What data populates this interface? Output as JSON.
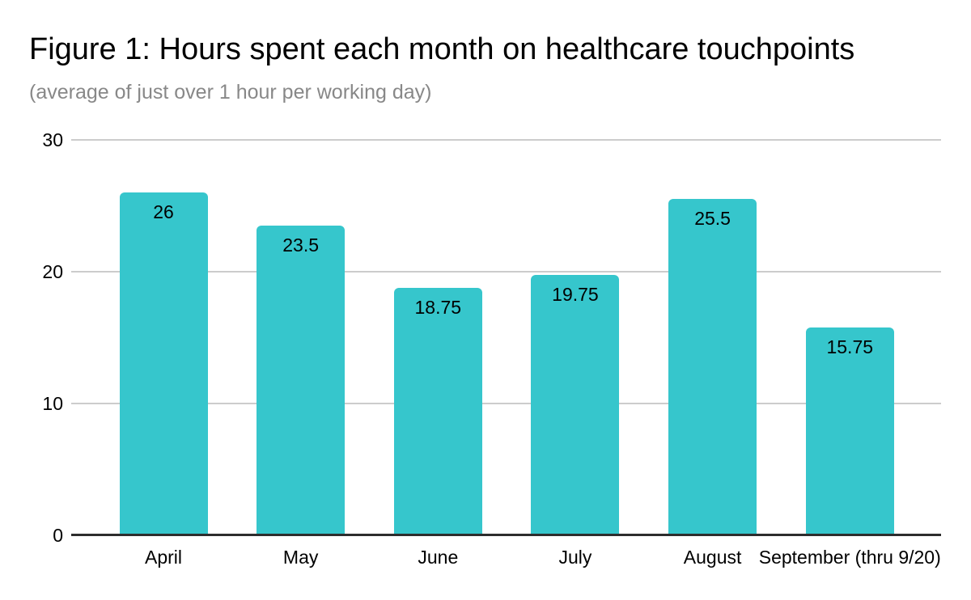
{
  "chart_data": {
    "type": "bar",
    "title": "Figure 1: Hours spent each month on healthcare touchpoints",
    "subtitle": "(average of just over 1 hour per working day)",
    "categories": [
      "April",
      "May",
      "June",
      "July",
      "August",
      "September (thru 9/20)"
    ],
    "values": [
      26,
      23.5,
      18.75,
      19.75,
      25.5,
      15.75
    ],
    "yticks": [
      "30",
      "20",
      "10",
      "0"
    ],
    "ylim": [
      0,
      30
    ],
    "grid": true,
    "legend": "none",
    "colors": {
      "bar": "#36c6cc",
      "gridline": "#cccccc",
      "axis_baseline": "#2d2d2d",
      "title_text": "#000000",
      "subtitle_text": "#888888",
      "label_text": "#000000"
    }
  }
}
